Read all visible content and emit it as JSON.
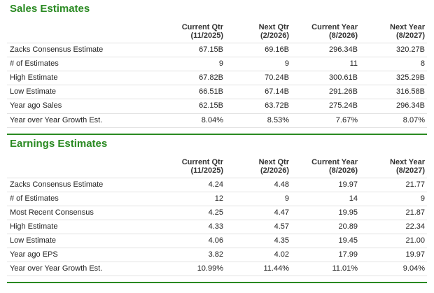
{
  "sections": [
    {
      "title": "Sales Estimates",
      "columns": [
        {
          "name": "Current Qtr",
          "period": "(11/2025)"
        },
        {
          "name": "Next Qtr",
          "period": "(2/2026)"
        },
        {
          "name": "Current Year",
          "period": "(8/2026)"
        },
        {
          "name": "Next Year",
          "period": "(8/2027)"
        }
      ],
      "rows": [
        {
          "label": "Zacks Consensus Estimate",
          "cells": [
            "67.15B",
            "69.16B",
            "296.34B",
            "320.27B"
          ]
        },
        {
          "label": "# of Estimates",
          "cells": [
            "9",
            "9",
            "11",
            "8"
          ]
        },
        {
          "label": "High Estimate",
          "cells": [
            "67.82B",
            "70.24B",
            "300.61B",
            "325.29B"
          ]
        },
        {
          "label": "Low Estimate",
          "cells": [
            "66.51B",
            "67.14B",
            "291.26B",
            "316.58B"
          ]
        },
        {
          "label": "Year ago Sales",
          "cells": [
            "62.15B",
            "63.72B",
            "275.24B",
            "296.34B"
          ]
        },
        {
          "label": "Year over Year Growth Est.",
          "cells": [
            "8.04%",
            "8.53%",
            "7.67%",
            "8.07%"
          ]
        }
      ]
    },
    {
      "title": "Earnings Estimates",
      "columns": [
        {
          "name": "Current Qtr",
          "period": "(11/2025)"
        },
        {
          "name": "Next Qtr",
          "period": "(2/2026)"
        },
        {
          "name": "Current Year",
          "period": "(8/2026)"
        },
        {
          "name": "Next Year",
          "period": "(8/2027)"
        }
      ],
      "rows": [
        {
          "label": "Zacks Consensus Estimate",
          "cells": [
            "4.24",
            "4.48",
            "19.97",
            "21.77"
          ]
        },
        {
          "label": "# of Estimates",
          "cells": [
            "12",
            "9",
            "14",
            "9"
          ]
        },
        {
          "label": "Most Recent Consensus",
          "cells": [
            "4.25",
            "4.47",
            "19.95",
            "21.87"
          ]
        },
        {
          "label": "High Estimate",
          "cells": [
            "4.33",
            "4.57",
            "20.89",
            "22.34"
          ]
        },
        {
          "label": "Low Estimate",
          "cells": [
            "4.06",
            "4.35",
            "19.45",
            "21.00"
          ]
        },
        {
          "label": "Year ago EPS",
          "cells": [
            "3.82",
            "4.02",
            "17.99",
            "19.97"
          ]
        },
        {
          "label": "Year over Year Growth Est.",
          "cells": [
            "10.99%",
            "11.44%",
            "11.01%",
            "9.04%"
          ]
        }
      ]
    }
  ]
}
